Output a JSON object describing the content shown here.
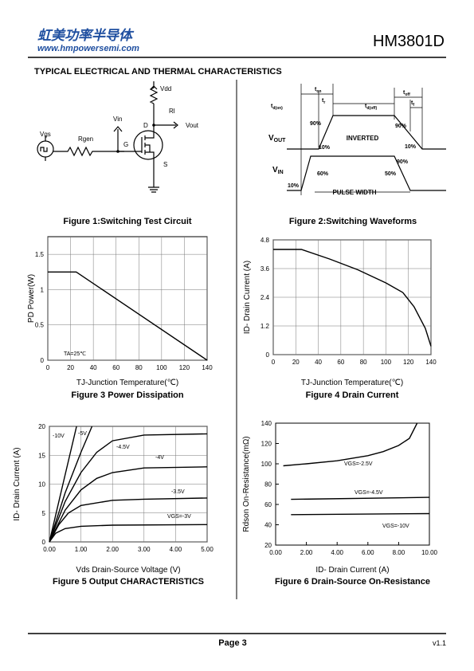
{
  "header": {
    "company": "虹美功率半导体",
    "website": "www.hmpowersemi.com",
    "part": "HM3801D"
  },
  "section_title": "TYPICAL ELECTRICAL AND THERMAL CHARACTERISTICS",
  "fig1": {
    "caption": "Figure 1:Switching Test Circuit",
    "labels": {
      "vdd": "Vdd",
      "rl": "Rl",
      "vin": "Vin",
      "vout": "Vout",
      "d": "D",
      "vgs": "Vgs",
      "rgen": "Rgen",
      "g": "G",
      "s": "S"
    }
  },
  "fig2": {
    "caption": "Figure 2:Switching Waveforms",
    "labels": {
      "tdon": {
        "main": "t",
        "sub": "d(on)"
      },
      "ton": {
        "main": "t",
        "sub": "on"
      },
      "tr": {
        "main": "t",
        "sub": "r"
      },
      "tdoff": {
        "main": "t",
        "sub": "d(off)"
      },
      "toff": {
        "main": "t",
        "sub": "off"
      },
      "tf": {
        "main": "t",
        "sub": "f"
      },
      "vout": {
        "main": "V",
        "sub": "OUT"
      },
      "vin": {
        "main": "V",
        "sub": "IN"
      },
      "inverted": "INVERTED",
      "pulse_width": "PULSE WIDTH",
      "out_rise_90": "90%",
      "out_rise_10": "10%",
      "out_fall_90": "90%",
      "out_fall_10": "10%",
      "in_fall_90": "90%",
      "in_rise_50": "60%",
      "in_fall_50": "50%",
      "in_10": "10%"
    }
  },
  "chart_data": [
    {
      "type": "line",
      "title": "Figure 3 Power Dissipation",
      "xlabel": "TJ-Junction Temperature(℃)",
      "ylabel": "PD  Power(W)",
      "annotation": "TA=25℃",
      "xlim": [
        0,
        140
      ],
      "ylim": [
        0,
        1.75
      ],
      "xticks": [
        0,
        20,
        40,
        60,
        80,
        100,
        120,
        140
      ],
      "yticks": [
        0,
        0.5,
        1,
        1.5
      ],
      "grid": true,
      "series": [
        {
          "name": null,
          "color": "#000000",
          "x": [
            0,
            25,
            140
          ],
          "values": [
            1.25,
            1.25,
            0
          ]
        }
      ]
    },
    {
      "type": "line",
      "title": "Figure 4 Drain Current",
      "xlabel": "TJ-Junction Temperature(℃)",
      "ylabel": "ID- Drain Current (A)",
      "xlim": [
        0,
        140
      ],
      "ylim": [
        0,
        4.8
      ],
      "xticks": [
        0,
        20,
        40,
        60,
        80,
        100,
        120,
        140
      ],
      "yticks": [
        0,
        1.2,
        2.4,
        3.6,
        4.8
      ],
      "grid": true,
      "series": [
        {
          "name": null,
          "color": "#000000",
          "x": [
            0,
            25,
            50,
            75,
            100,
            115,
            125,
            135,
            140
          ],
          "values": [
            4.4,
            4.4,
            4.0,
            3.55,
            3.0,
            2.6,
            2.0,
            1.1,
            0.35
          ]
        }
      ]
    },
    {
      "type": "line",
      "title": "Figure 5 Output CHARACTERISTICS",
      "xlabel": "Vds Drain-Source Voltage (V)",
      "ylabel": "ID- Drain Current (A)",
      "xlim": [
        0,
        5
      ],
      "ylim": [
        0,
        20
      ],
      "xticks": [
        {
          "value": 0,
          "label": "0.00"
        },
        {
          "value": 1,
          "label": "1.00"
        },
        {
          "value": 2,
          "label": "2.00"
        },
        {
          "value": 3,
          "label": "3.00"
        },
        {
          "value": 4,
          "label": "4.00"
        },
        {
          "value": 5,
          "label": "5.00"
        }
      ],
      "yticks": [
        0,
        5,
        10,
        15,
        20
      ],
      "grid": true,
      "series": [
        {
          "name": "-10V",
          "color": "#000000",
          "x": [
            0,
            0.43,
            0.86
          ],
          "values": [
            0,
            10,
            20
          ]
        },
        {
          "name": "-5V",
          "color": "#000000",
          "x": [
            0,
            0.5,
            1,
            1.35
          ],
          "values": [
            0,
            8.5,
            15.5,
            20
          ]
        },
        {
          "name": "-4.5V",
          "color": "#000000",
          "x": [
            0,
            0.5,
            1,
            1.5,
            2,
            3,
            5
          ],
          "values": [
            0,
            7,
            12,
            15.5,
            17.5,
            18.5,
            18.7
          ]
        },
        {
          "name": "-4V",
          "color": "#000000",
          "x": [
            0,
            0.5,
            1,
            1.5,
            2,
            3,
            5
          ],
          "values": [
            0,
            5.5,
            9,
            11,
            12,
            12.8,
            13
          ]
        },
        {
          "name": "-3.5V",
          "color": "#000000",
          "x": [
            0,
            0.3,
            0.6,
            1,
            2,
            3,
            5
          ],
          "values": [
            0,
            3,
            5,
            6.3,
            7.2,
            7.4,
            7.6
          ]
        },
        {
          "name": "VGS=-3V",
          "color": "#000000",
          "x": [
            0,
            0.2,
            0.5,
            1,
            2,
            5
          ],
          "values": [
            0,
            1.5,
            2.3,
            2.7,
            2.9,
            3.0
          ]
        }
      ]
    },
    {
      "type": "line",
      "title": "Figure 6 Drain-Source On-Resistance",
      "xlabel": "ID- Drain Current (A)",
      "ylabel": "Rdson On-Resistance(mΩ)",
      "xlim": [
        0,
        10
      ],
      "ylim": [
        20,
        140
      ],
      "xticks": [
        {
          "value": 0,
          "label": "0.00"
        },
        {
          "value": 2,
          "label": "2.00"
        },
        {
          "value": 4,
          "label": "4.00"
        },
        {
          "value": 6,
          "label": "6.00"
        },
        {
          "value": 8,
          "label": "8.00"
        },
        {
          "value": 10,
          "label": "10.00"
        }
      ],
      "yticks": [
        20,
        40,
        60,
        80,
        100,
        120,
        140
      ],
      "grid": false,
      "series": [
        {
          "name": "VGS=-2.5V",
          "color": "#000000",
          "x": [
            0.5,
            2,
            4,
            6,
            7,
            8,
            8.7,
            9.2
          ],
          "values": [
            98,
            100,
            103,
            108,
            112,
            118,
            125,
            140
          ]
        },
        {
          "name": "VGS=-4.5V",
          "color": "#000000",
          "x": [
            1,
            10
          ],
          "values": [
            65,
            67
          ]
        },
        {
          "name": "VGS=-10V",
          "color": "#000000",
          "x": [
            1,
            10
          ],
          "values": [
            50,
            51
          ]
        }
      ]
    }
  ],
  "footer": {
    "page": "Page 3",
    "version": "v1.1"
  }
}
